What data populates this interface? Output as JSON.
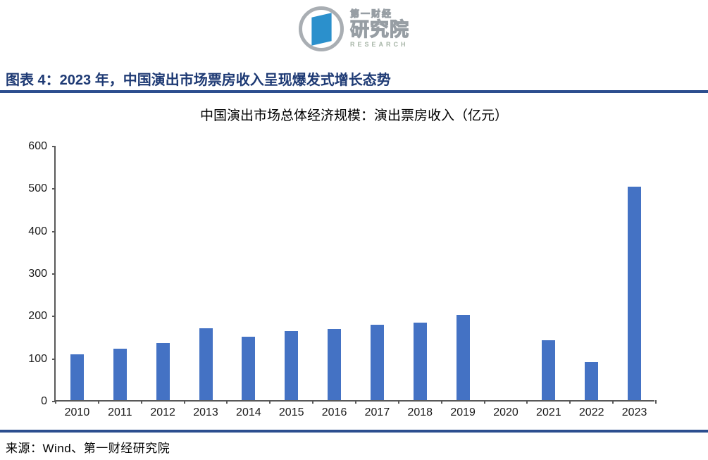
{
  "logo": {
    "brand_top": "第一财经",
    "brand_main": "研究院",
    "brand_sub": "RESEARCH"
  },
  "figure": {
    "caption": "图表 4：2023 年，中国演出市场票房收入呈现爆发式增长态势",
    "source": "来源：Wind、第一财经研究院"
  },
  "chart_data": {
    "type": "bar",
    "title": "中国演出市场总体经济规模：演出票房收入（亿元）",
    "categories": [
      "2010",
      "2011",
      "2012",
      "2013",
      "2014",
      "2015",
      "2016",
      "2017",
      "2018",
      "2019",
      "2020",
      "2021",
      "2022",
      "2023"
    ],
    "values": [
      108,
      121,
      135,
      169,
      149,
      162,
      167,
      177,
      182,
      200,
      0,
      141,
      90,
      502
    ],
    "xlabel": "",
    "ylabel": "",
    "ylim": [
      0,
      600
    ],
    "yticks": [
      0,
      100,
      200,
      300,
      400,
      500,
      600
    ],
    "grid": false,
    "legend": false,
    "bar_color": "#4472c4"
  },
  "colors": {
    "accent_navy": "#1e3a74",
    "rule_navy": "#2c4e8f",
    "bar_blue": "#4472c4",
    "logo_blue": "#2b90cc",
    "logo_gray": "#979ea4",
    "research_gray_green": "#a7b5a7",
    "axis_gray": "#595959"
  }
}
